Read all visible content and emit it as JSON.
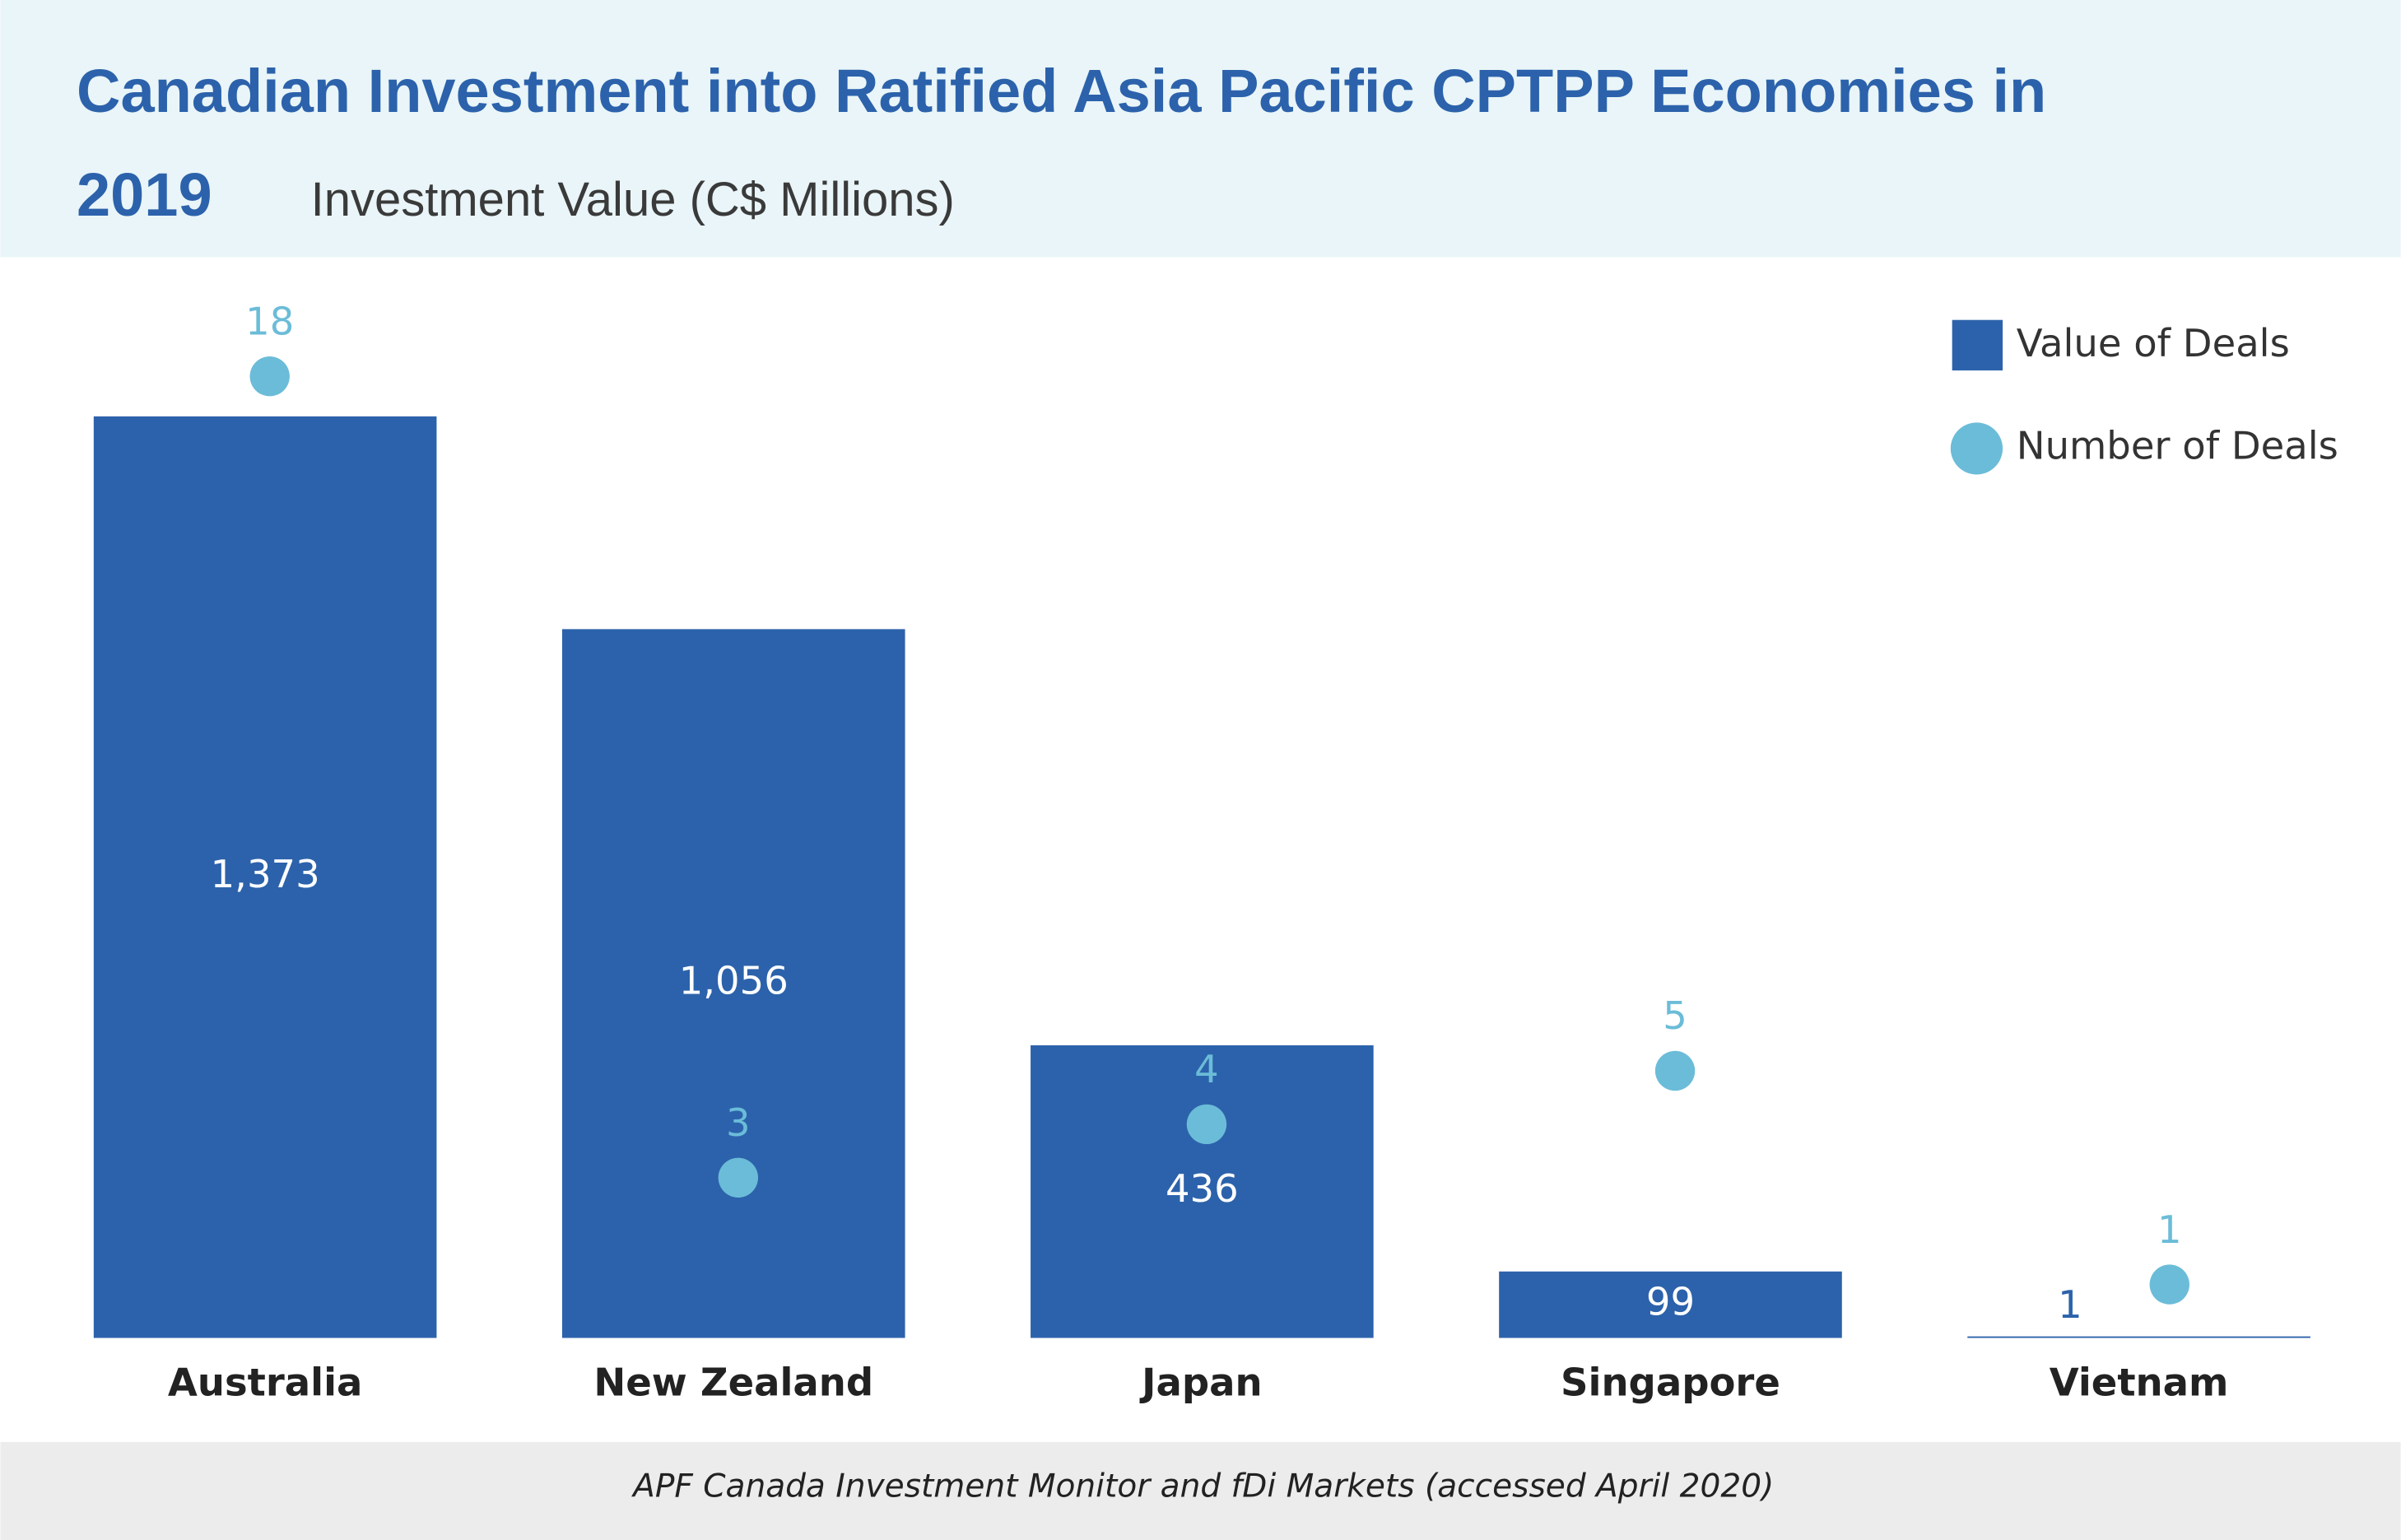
{
  "chart_data": {
    "type": "bar",
    "title": "Canadian Investment into Ratified Asia Pacific CPTPP Economies in 2019",
    "subtitle": "Investment Value (C$ Millions)",
    "source": "APF Canada Investment Monitor and fDi Markets (accessed April 2020)",
    "categories": [
      "Australia",
      "New Zealand",
      "Japan",
      "Singapore",
      "Vietnam"
    ],
    "series": [
      {
        "name": "Value of Deals",
        "type": "bar",
        "color": "#2c62ab",
        "values": [
          1373,
          1056,
          436,
          99,
          1
        ],
        "value_labels": [
          "1,373",
          "1,056",
          "436",
          "99",
          "1"
        ]
      },
      {
        "name": "Number of Deals",
        "type": "scatter",
        "axis": "y2",
        "color": "#6bbcd8",
        "values": [
          18,
          3,
          4,
          5,
          1
        ]
      }
    ],
    "ylim": [
      0,
      1560
    ],
    "y2lim": [
      0,
      19.6
    ],
    "legend": "upper right"
  }
}
